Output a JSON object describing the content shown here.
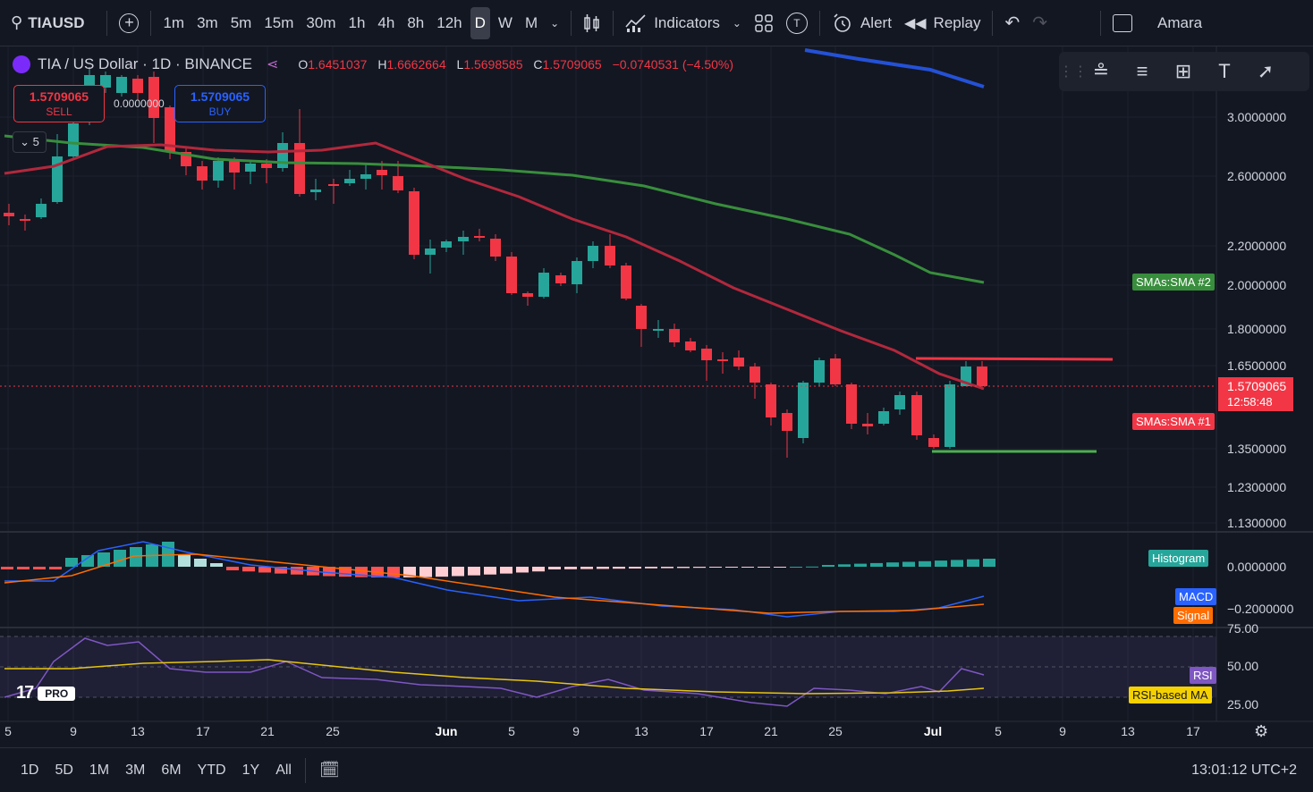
{
  "toolbar": {
    "symbol": "TIAUSD",
    "intervals": [
      "1m",
      "3m",
      "5m",
      "15m",
      "30m",
      "1h",
      "4h",
      "8h",
      "12h",
      "D",
      "W",
      "M"
    ],
    "selected_interval": "D",
    "indicators_label": "Indicators",
    "alert_label": "Alert",
    "replay_label": "Replay",
    "user_label": "Amara"
  },
  "legend": {
    "title": "TIA / US Dollar · 1D · BINANCE",
    "o_key": "O",
    "o_val": "1.6451037",
    "h_key": "H",
    "h_val": "1.6662664",
    "l_key": "L",
    "l_val": "1.5698585",
    "c_key": "C",
    "c_val": "1.5709065",
    "change": "−0.0740531 (−4.50%)"
  },
  "trade": {
    "sell_price": "1.5709065",
    "sell_label": "SELL",
    "spread": "0.0000000",
    "buy_price": "1.5709065",
    "buy_label": "BUY"
  },
  "collapse_count": "5",
  "price_axis": [
    "3.0000000",
    "2.6000000",
    "2.2000000",
    "2.0000000",
    "1.8000000",
    "1.6500000",
    "1.3500000",
    "1.2300000",
    "1.1300000"
  ],
  "current_price": "1.5709065",
  "countdown": "12:58:48",
  "tags": {
    "sma2": "SMAs:SMA #2",
    "sma1": "SMAs:SMA #1",
    "histogram": "Histogram",
    "macd": "MACD",
    "signal": "Signal",
    "rsi": "RSI",
    "rsi_ma": "RSI-based MA"
  },
  "macd_axis": [
    "0.0000000",
    "−0.2000000"
  ],
  "rsi_axis": [
    "75.00",
    "50.00",
    "25.00"
  ],
  "time_axis": [
    "5",
    "9",
    "13",
    "17",
    "21",
    "25",
    "Jun",
    "5",
    "9",
    "13",
    "17",
    "21",
    "25",
    "Jul",
    "5",
    "9",
    "13",
    "17"
  ],
  "pro_badge": "PRO",
  "bottom": {
    "ranges": [
      "1D",
      "5D",
      "1M",
      "3M",
      "6M",
      "YTD",
      "1Y",
      "All"
    ],
    "clock": "13:01:12 UTC+2"
  },
  "colors": {
    "up": "#26a69a",
    "down": "#f23645",
    "sma_red": "#b2283c",
    "sma_green": "#388e3c",
    "sma_blue": "#2451d6",
    "macd": "#2962ff",
    "signal": "#ff6d00",
    "rsi": "#7e57c2",
    "rsi_ma": "#e6c510"
  }
}
